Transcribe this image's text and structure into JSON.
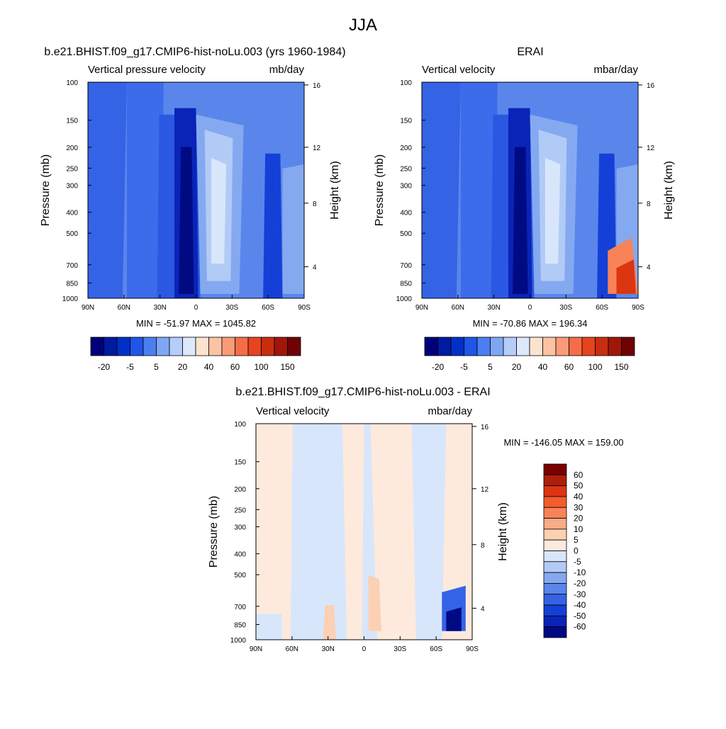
{
  "page_title": "JJA",
  "chart_data": [
    {
      "type": "heatmap",
      "title": "b.e21.BHIST.f09_g17.CMIP6-hist-noLu.003 (yrs 1960-1984)",
      "left_subtitle": "Vertical pressure velocity",
      "right_subtitle": "mb/day",
      "ylabel": "Pressure (mb)",
      "y2label": "Height (km)",
      "x_ticks": [
        "90N",
        "60N",
        "30N",
        "0",
        "30S",
        "60S",
        "90S"
      ],
      "y_ticks": [
        "100",
        "150",
        "200",
        "250",
        "300",
        "400",
        "500",
        "700",
        "850",
        "1000"
      ],
      "y_tick_values": [
        100,
        150,
        200,
        250,
        300,
        400,
        500,
        700,
        850,
        1000
      ],
      "height_ticks": [
        "16",
        "12",
        "8",
        "4"
      ],
      "height_tick_pressures": [
        103,
        200,
        363,
        715
      ],
      "stats": "MIN = -51.97  MAX = 1045.82",
      "colorbar": {
        "orientation": "horizontal",
        "tick_labels": [
          "-20",
          "-5",
          "5",
          "20",
          "40",
          "60",
          "100",
          "150"
        ],
        "colors": [
          "#00007a",
          "#001aa0",
          "#0030c8",
          "#1f55e8",
          "#4b7ff0",
          "#7fa6f4",
          "#b5cdf8",
          "#dde8fb",
          "#fde2cf",
          "#fcc2a4",
          "#f99b78",
          "#f46d48",
          "#e6441f",
          "#c92d10",
          "#a0170a",
          "#6e0205"
        ]
      }
    },
    {
      "type": "heatmap",
      "title": "ERAI",
      "left_subtitle": "Vertical velocity",
      "right_subtitle": "mbar/day",
      "ylabel": "Pressure (mb)",
      "y2label": "Height (km)",
      "x_ticks": [
        "90N",
        "60N",
        "30N",
        "0",
        "30S",
        "60S",
        "90S"
      ],
      "y_ticks": [
        "100",
        "150",
        "200",
        "250",
        "300",
        "400",
        "500",
        "700",
        "850",
        "1000"
      ],
      "y_tick_values": [
        100,
        150,
        200,
        250,
        300,
        400,
        500,
        700,
        850,
        1000
      ],
      "height_ticks": [
        "16",
        "12",
        "8",
        "4"
      ],
      "height_tick_pressures": [
        103,
        200,
        363,
        715
      ],
      "stats": "MIN = -70.86  MAX = 196.34",
      "colorbar": {
        "orientation": "horizontal",
        "tick_labels": [
          "-20",
          "-5",
          "5",
          "20",
          "40",
          "60",
          "100",
          "150"
        ],
        "colors": [
          "#00007a",
          "#001aa0",
          "#0030c8",
          "#1f55e8",
          "#4b7ff0",
          "#7fa6f4",
          "#b5cdf8",
          "#dde8fb",
          "#fde2cf",
          "#fcc2a4",
          "#f99b78",
          "#f46d48",
          "#e6441f",
          "#c92d10",
          "#a0170a",
          "#6e0205"
        ]
      }
    },
    {
      "type": "heatmap",
      "title": "b.e21.BHIST.f09_g17.CMIP6-hist-noLu.003 - ERAI",
      "left_subtitle": "Vertical velocity",
      "right_subtitle": "mbar/day",
      "ylabel": "Pressure (mb)",
      "y2label": "Height (km)",
      "x_ticks": [
        "90N",
        "60N",
        "30N",
        "0",
        "30S",
        "60S",
        "90S"
      ],
      "y_ticks": [
        "100",
        "150",
        "200",
        "250",
        "300",
        "400",
        "500",
        "700",
        "850",
        "1000"
      ],
      "y_tick_values": [
        100,
        150,
        200,
        250,
        300,
        400,
        500,
        700,
        850,
        1000
      ],
      "height_ticks": [
        "16",
        "12",
        "8",
        "4"
      ],
      "height_tick_pressures": [
        103,
        200,
        363,
        715
      ],
      "stats": "MIN = -146.05  MAX = 159.00",
      "colorbar": {
        "orientation": "vertical",
        "tick_labels": [
          "60",
          "50",
          "40",
          "30",
          "20",
          "10",
          "5",
          "0",
          "-5",
          "-10",
          "-20",
          "-30",
          "-40",
          "-50",
          "-60"
        ],
        "colors": [
          "#7a0000",
          "#b01e0a",
          "#dc3512",
          "#f45d2a",
          "#f98358",
          "#fbab86",
          "#fcd0b3",
          "#fdeadc",
          "#d8e6fb",
          "#b2cbf6",
          "#85a9f0",
          "#5a86ec",
          "#3563e6",
          "#1440d8",
          "#0a24b8",
          "#000a82"
        ]
      }
    }
  ]
}
